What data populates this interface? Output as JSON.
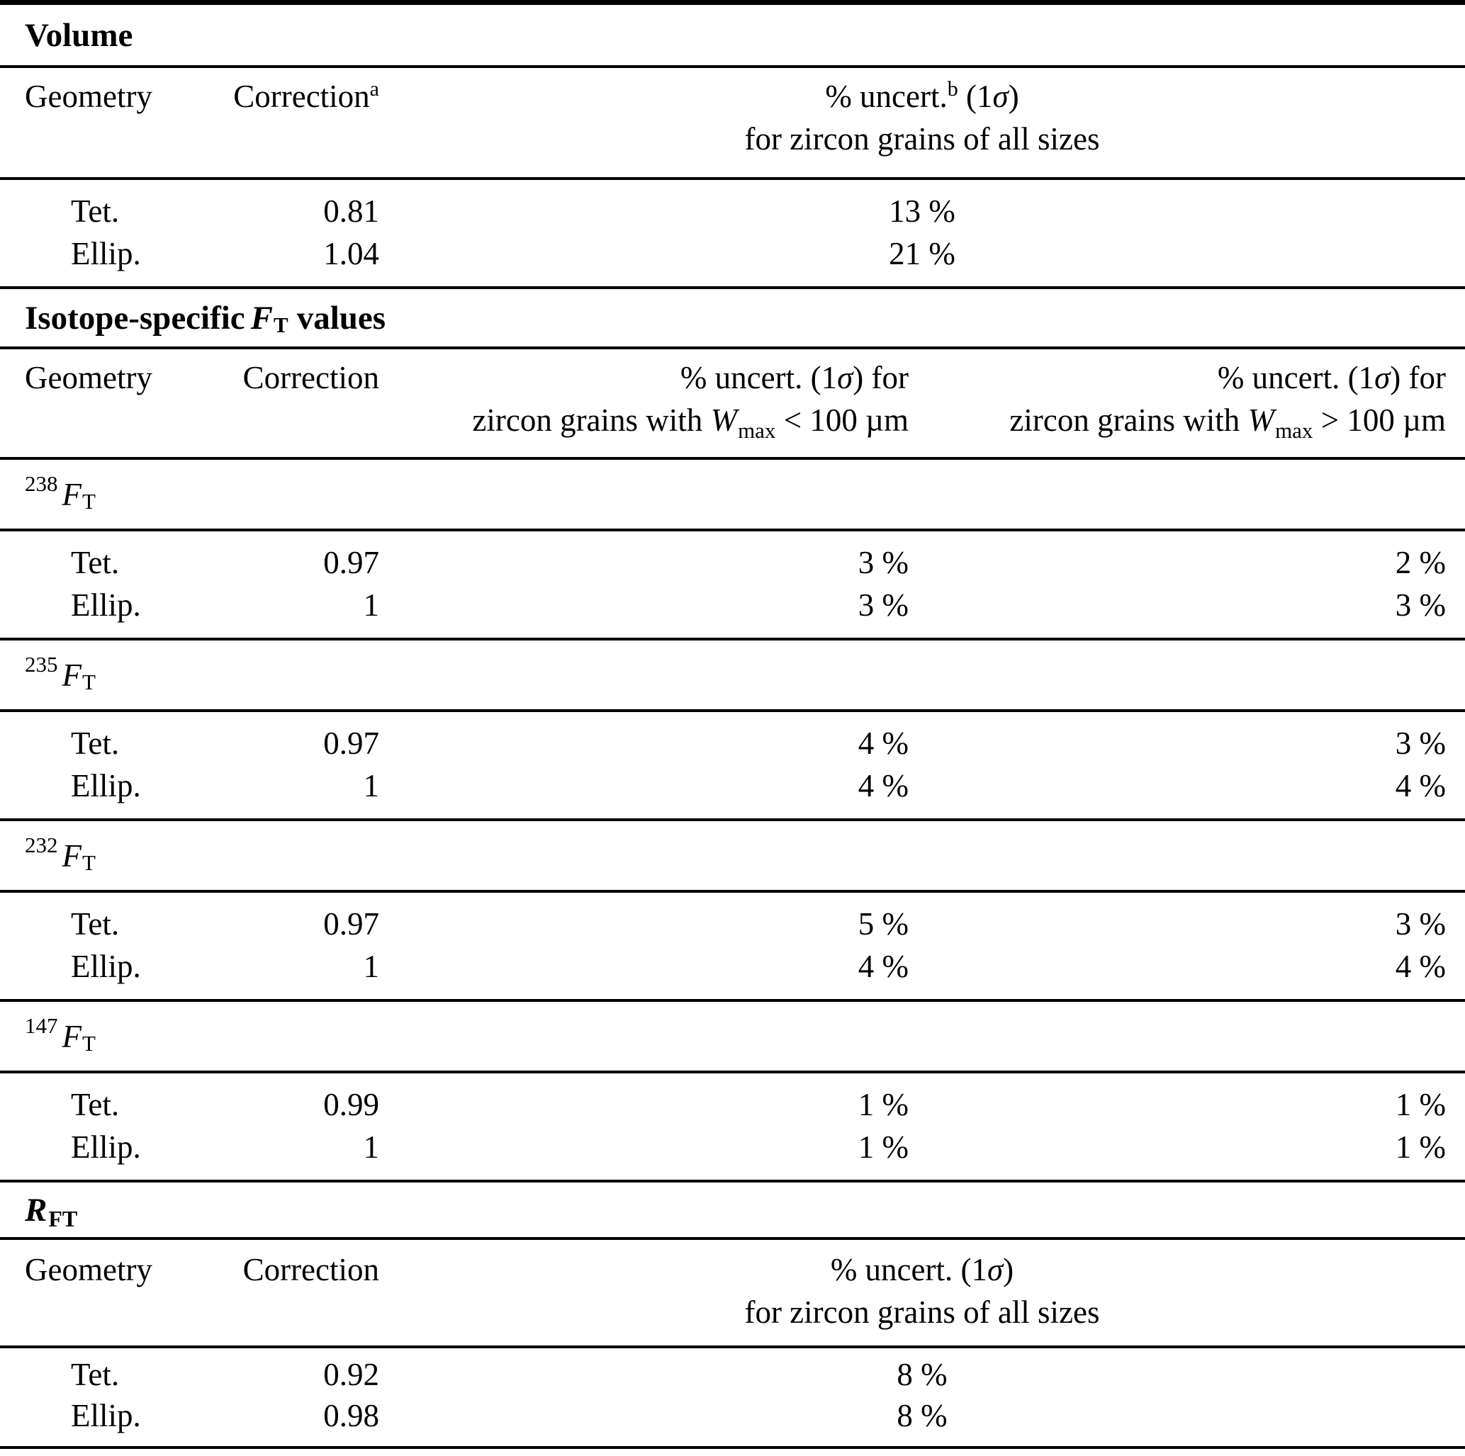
{
  "volume": {
    "title": "Volume",
    "header": {
      "geometry": "Geometry",
      "correction": "Correction",
      "correction_sup": "a",
      "uncert_p1": "% uncert.",
      "uncert_sup": "b",
      "uncert_p2": " (1",
      "sigma": "σ",
      "uncert_p3": ")",
      "uncert_line2": "for zircon grains of all sizes"
    },
    "rows": [
      {
        "geometry": "Tet.",
        "correction": "0.81",
        "uncert": "13 %"
      },
      {
        "geometry": "Ellip.",
        "correction": "1.04",
        "uncert": "21 %"
      }
    ]
  },
  "isotope": {
    "title_p1": "Isotope-specific",
    "title_f": "F",
    "title_fsub": "T",
    "title_p2": "values",
    "header": {
      "geometry": "Geometry",
      "correction": "Correction",
      "col3": {
        "l1_p1": "% uncert. (1",
        "sigma": "σ",
        "l1_p2": ") for",
        "l2_p1": "zircon grains with ",
        "w": "W",
        "wsub": "max",
        "l2_p2": " < 100 µm"
      },
      "col4": {
        "l1_p1": "% uncert. (1",
        "sigma": "σ",
        "l1_p2": ") for",
        "l2_p1": "zircon grains with ",
        "w": "W",
        "wsub": "max",
        "l2_p2": " > 100 µm"
      }
    },
    "subsections": [
      {
        "label_sup": "238",
        "label_f": "F",
        "label_fsub": "T",
        "rows": [
          {
            "geometry": "Tet.",
            "correction": "0.97",
            "uncert_small": "3 %",
            "uncert_large": "2 %"
          },
          {
            "geometry": "Ellip.",
            "correction": "1",
            "uncert_small": "3 %",
            "uncert_large": "3 %"
          }
        ]
      },
      {
        "label_sup": "235",
        "label_f": "F",
        "label_fsub": "T",
        "rows": [
          {
            "geometry": "Tet.",
            "correction": "0.97",
            "uncert_small": "4 %",
            "uncert_large": "3 %"
          },
          {
            "geometry": "Ellip.",
            "correction": "1",
            "uncert_small": "4 %",
            "uncert_large": "4 %"
          }
        ]
      },
      {
        "label_sup": "232",
        "label_f": "F",
        "label_fsub": "T",
        "rows": [
          {
            "geometry": "Tet.",
            "correction": "0.97",
            "uncert_small": "5 %",
            "uncert_large": "3 %"
          },
          {
            "geometry": "Ellip.",
            "correction": "1",
            "uncert_small": "4 %",
            "uncert_large": "4 %"
          }
        ]
      },
      {
        "label_sup": "147",
        "label_f": "F",
        "label_fsub": "T",
        "rows": [
          {
            "geometry": "Tet.",
            "correction": "0.99",
            "uncert_small": "1 %",
            "uncert_large": "1 %"
          },
          {
            "geometry": "Ellip.",
            "correction": "1",
            "uncert_small": "1 %",
            "uncert_large": "1 %"
          }
        ]
      }
    ]
  },
  "rft": {
    "title_r": "R",
    "title_rsub": "FT",
    "header": {
      "geometry": "Geometry",
      "correction": "Correction",
      "uncert_p1": "% uncert. (1",
      "sigma": "σ",
      "uncert_p2": ")",
      "uncert_line2": "for zircon grains of all sizes"
    },
    "rows": [
      {
        "geometry": "Tet.",
        "correction": "0.92",
        "uncert": "8 %"
      },
      {
        "geometry": "Ellip.",
        "correction": "0.98",
        "uncert": "8 %"
      }
    ]
  }
}
